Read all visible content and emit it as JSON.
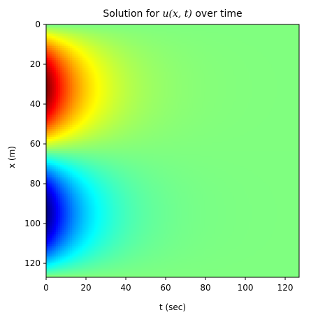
{
  "chart_data": {
    "type": "heatmap",
    "title_parts": {
      "prefix": "Solution for ",
      "math": "u(x, t)",
      "suffix": " over time"
    },
    "xlabel": "t (sec)",
    "ylabel": "x (m)",
    "xlim": [
      0,
      127
    ],
    "ylim": [
      0,
      127
    ],
    "y_axis_direction": "top-to-bottom",
    "xticks": [
      0,
      20,
      40,
      60,
      80,
      100,
      120
    ],
    "yticks": [
      0,
      20,
      40,
      60,
      80,
      100,
      120
    ],
    "colormap": "jet",
    "value_range": [
      -1,
      1
    ],
    "grid": false,
    "legend": "none",
    "field_description": {
      "positive_peak": {
        "x": 32,
        "t": 0,
        "value": 1
      },
      "negative_peak": {
        "x": 96,
        "t": 0,
        "value": -1
      },
      "decay_with_time": true
    }
  }
}
